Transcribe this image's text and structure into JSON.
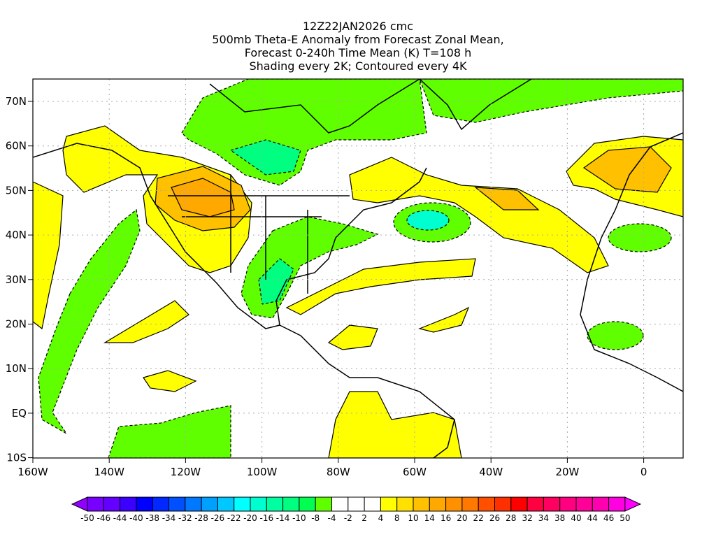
{
  "header": {
    "lines": [
      "12Z22JAN2026 cmc",
      "500mb Theta-E Anomaly from Forecast Zonal Mean,",
      "Forecast 0-240h Time Mean (K) T=108 h",
      "Shading every 2K; Contoured every 4K"
    ]
  },
  "map": {
    "lon_labels": [
      "160W",
      "140W",
      "120W",
      "100W",
      "80W",
      "60W",
      "40W",
      "20W",
      "0"
    ],
    "lat_labels": [
      "70N",
      "60N",
      "50N",
      "40N",
      "30N",
      "20N",
      "10N",
      "EQ",
      "10S"
    ],
    "colors": {
      "yellow": "#ffff00",
      "orange_light": "#ffc000",
      "orange": "#ffa800",
      "green": "#60ff00",
      "green2": "#00ff50",
      "green3": "#00ff80",
      "teal": "#00ffd0"
    }
  },
  "colorbar": {
    "labels": [
      "-50",
      "-46",
      "-44",
      "-40",
      "-38",
      "-34",
      "-32",
      "-28",
      "-26",
      "-22",
      "-20",
      "-16",
      "-14",
      "-10",
      "-8",
      "-4",
      "-2",
      "2",
      "4",
      "8",
      "10",
      "14",
      "16",
      "20",
      "22",
      "26",
      "28",
      "32",
      "34",
      "38",
      "40",
      "44",
      "46",
      "50"
    ],
    "left_arrow_color": "#9000ff",
    "right_arrow_color": "#ff00ff",
    "colors": [
      "#7800ff",
      "#6400ff",
      "#3c00ff",
      "#0000ff",
      "#0028ff",
      "#0050ff",
      "#0078ff",
      "#00a0ff",
      "#00c8ff",
      "#00ffff",
      "#00ffd0",
      "#00ffa0",
      "#00ff80",
      "#00ff50",
      "#60ff00",
      "#ffffff",
      "#ffffff",
      "#ffffff",
      "#ffff00",
      "#ffe000",
      "#ffc000",
      "#ffa800",
      "#ff9000",
      "#ff7800",
      "#ff5000",
      "#ff3000",
      "#ff0000",
      "#ff0040",
      "#ff0060",
      "#ff0080",
      "#ff0098",
      "#ff00b0",
      "#ff00e0"
    ]
  }
}
